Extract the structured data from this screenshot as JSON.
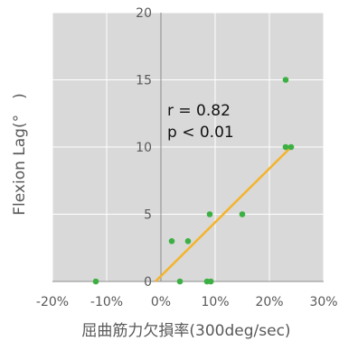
{
  "chart_data": {
    "type": "scatter",
    "title": "",
    "xlabel": "屈曲筋力欠損率(300deg/sec)",
    "ylabel": "Flexion Lag(°　)",
    "xlim": [
      -0.2,
      0.3
    ],
    "ylim": [
      0,
      20
    ],
    "xticks": [
      -0.2,
      -0.1,
      0.0,
      0.1,
      0.2,
      0.3
    ],
    "xtick_labels": [
      "-20%",
      "-10%",
      "0%",
      "10%",
      "20%",
      "30%"
    ],
    "yticks": [
      0,
      5,
      10,
      15,
      20
    ],
    "ytick_labels": [
      "0",
      "5",
      "10",
      "15",
      "20"
    ],
    "grid": true,
    "background": "#d9d9d9",
    "gridline_color": "#ffffff",
    "point_color": "#3cb043",
    "trendline_color": "#f5b32a",
    "points": [
      {
        "x": -0.12,
        "y": 0
      },
      {
        "x": 0.02,
        "y": 3
      },
      {
        "x": 0.035,
        "y": 0
      },
      {
        "x": 0.05,
        "y": 3
      },
      {
        "x": 0.085,
        "y": 0
      },
      {
        "x": 0.09,
        "y": 5
      },
      {
        "x": 0.092,
        "y": 0
      },
      {
        "x": 0.15,
        "y": 5
      },
      {
        "x": 0.23,
        "y": 15
      },
      {
        "x": 0.23,
        "y": 10
      },
      {
        "x": 0.24,
        "y": 10
      }
    ],
    "trendline": {
      "x": [
        -0.01,
        0.24
      ],
      "y": [
        0,
        10
      ]
    },
    "annotations": [
      "r = 0.82",
      "p < 0.01"
    ]
  }
}
